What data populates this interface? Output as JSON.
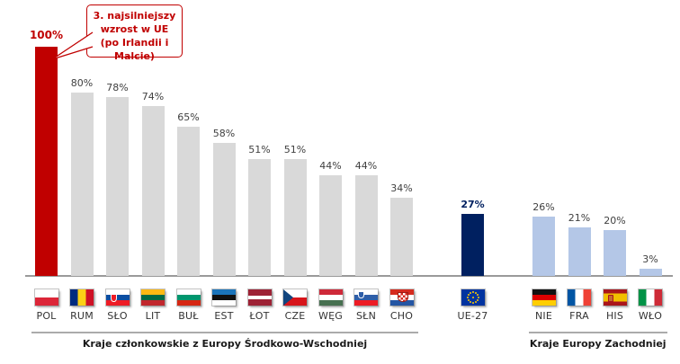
{
  "callout": {
    "text": "3. najsilniejszy wzrost w UE (po Irlandii i Malcie)",
    "color": "#C00000"
  },
  "colors": {
    "highlight_bar": "#C00000",
    "cee_bar": "#D9D9D9",
    "eu_bar": "#002060",
    "west_bar": "#B4C7E7",
    "axis_line": "#9A9A9A",
    "value_label": "#404040"
  },
  "chart_data": {
    "type": "bar",
    "title": "",
    "xlabel": "",
    "ylabel": "",
    "unit": "%",
    "ylim": [
      0,
      100
    ],
    "grid": false,
    "legend": false,
    "categories": [
      "POL",
      "RUM",
      "SŁO",
      "LIT",
      "BUŁ",
      "EST",
      "ŁOT",
      "CZE",
      "WĘG",
      "SŁN",
      "CHO",
      "UE-27",
      "NIE",
      "FRA",
      "HIS",
      "WŁO"
    ],
    "values": [
      100,
      80,
      78,
      74,
      65,
      58,
      51,
      51,
      44,
      44,
      34,
      27,
      26,
      21,
      20,
      3
    ],
    "groups": [
      {
        "label": "Kraje członkowskie z Europy Środkowo-Wschodniej",
        "bars": [
          {
            "code": "POL",
            "value": 100,
            "flag": "pol",
            "flag_name": "poland-flag",
            "color": "#C00000",
            "value_color": "#C00000",
            "value_bold": true,
            "value_size": 12
          },
          {
            "code": "RUM",
            "value": 80,
            "flag": "rum",
            "flag_name": "romania-flag",
            "color": "#D9D9D9"
          },
          {
            "code": "SŁO",
            "value": 78,
            "flag": "slo",
            "flag_name": "slovakia-flag",
            "color": "#D9D9D9"
          },
          {
            "code": "LIT",
            "value": 74,
            "flag": "lit",
            "flag_name": "lithuania-flag",
            "color": "#D9D9D9"
          },
          {
            "code": "BUŁ",
            "value": 65,
            "flag": "bul",
            "flag_name": "bulgaria-flag",
            "color": "#D9D9D9"
          },
          {
            "code": "EST",
            "value": 58,
            "flag": "est",
            "flag_name": "estonia-flag",
            "color": "#D9D9D9"
          },
          {
            "code": "ŁOT",
            "value": 51,
            "flag": "lot",
            "flag_name": "latvia-flag",
            "color": "#D9D9D9"
          },
          {
            "code": "CZE",
            "value": 51,
            "flag": "cze",
            "flag_name": "czechia-flag",
            "color": "#D9D9D9"
          },
          {
            "code": "WĘG",
            "value": 44,
            "flag": "weg",
            "flag_name": "hungary-flag",
            "color": "#D9D9D9"
          },
          {
            "code": "SŁN",
            "value": 44,
            "flag": "sln",
            "flag_name": "slovenia-flag",
            "color": "#D9D9D9"
          },
          {
            "code": "CHO",
            "value": 34,
            "flag": "cho",
            "flag_name": "croatia-flag",
            "color": "#D9D9D9"
          }
        ]
      },
      {
        "label": "",
        "bars": [
          {
            "code": "UE-27",
            "value": 27,
            "flag": "ue",
            "flag_name": "eu-flag",
            "color": "#002060",
            "value_color": "#002060",
            "value_bold": true
          }
        ]
      },
      {
        "label": "Kraje Europy Zachodniej",
        "bars": [
          {
            "code": "NIE",
            "value": 26,
            "flag": "nie",
            "flag_name": "germany-flag",
            "color": "#B4C7E7"
          },
          {
            "code": "FRA",
            "value": 21,
            "flag": "fra",
            "flag_name": "france-flag",
            "color": "#B4C7E7"
          },
          {
            "code": "HIS",
            "value": 20,
            "flag": "his",
            "flag_name": "spain-flag",
            "color": "#B4C7E7"
          },
          {
            "code": "WŁO",
            "value": 3,
            "flag": "wlo",
            "flag_name": "italy-flag",
            "color": "#B4C7E7"
          }
        ]
      }
    ]
  }
}
